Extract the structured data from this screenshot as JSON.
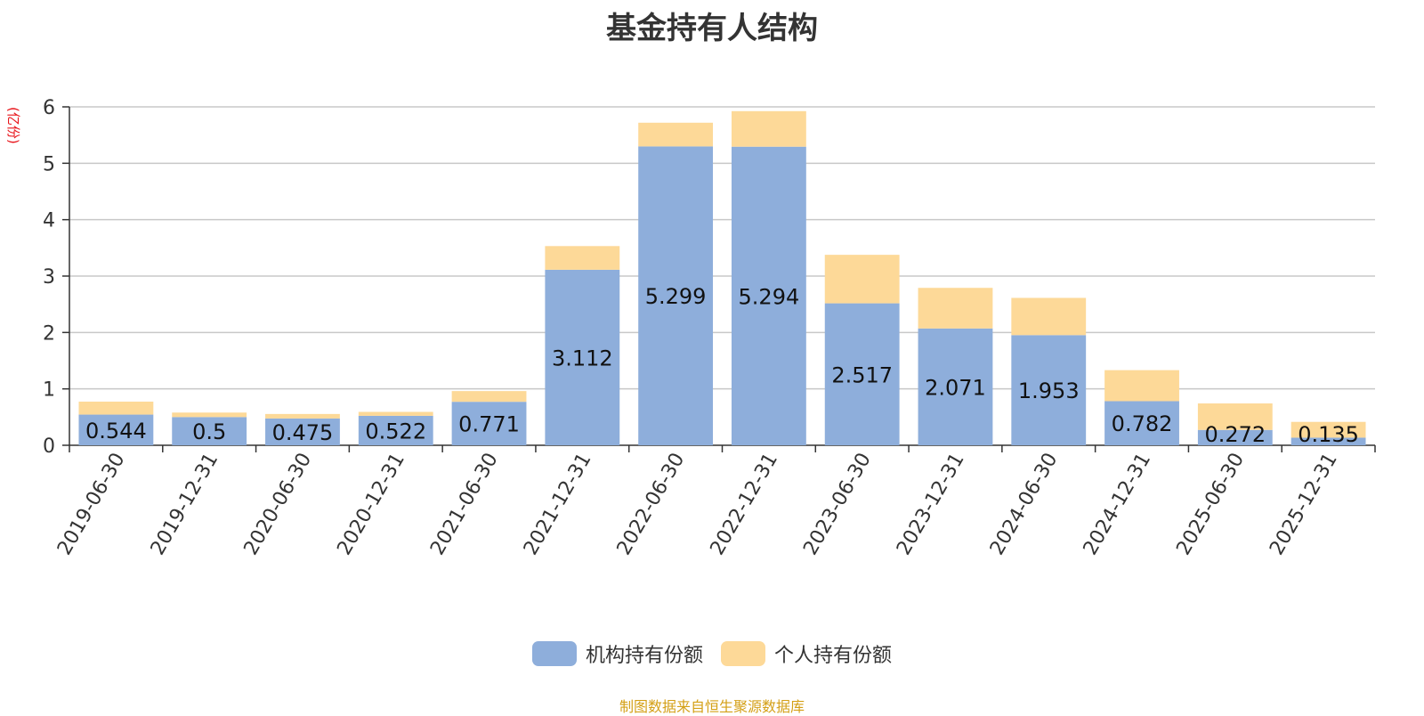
{
  "title": "基金持有人结构",
  "unit_label": "(亿份)",
  "source_text": "制图数据来自恒生聚源数据库",
  "colors": {
    "institutional": "#8eaedb",
    "individual": "#fdd998",
    "grid": "#c8c8c8",
    "axis": "#333333"
  },
  "chart_data": {
    "type": "bar",
    "stacked": true,
    "title": "基金持有人结构",
    "ylabel": "(亿份)",
    "ylim": [
      0,
      6
    ],
    "yticks": [
      0,
      1,
      2,
      3,
      4,
      5,
      6
    ],
    "grid": true,
    "legend_position": "bottom",
    "categories": [
      "2019-06-30",
      "2019-12-31",
      "2020-06-30",
      "2020-12-31",
      "2021-06-30",
      "2021-12-31",
      "2022-06-30",
      "2022-12-31",
      "2023-06-30",
      "2023-12-31",
      "2024-06-30",
      "2024-12-31",
      "2025-06-30",
      "2025-12-31"
    ],
    "series": [
      {
        "name": "机构持有份额",
        "values": [
          0.544,
          0.5,
          0.475,
          0.522,
          0.771,
          3.112,
          5.299,
          5.294,
          2.517,
          2.071,
          1.953,
          0.782,
          0.272,
          0.135
        ],
        "value_labels": [
          "0.544",
          "0.5",
          "0.475",
          "0.522",
          "0.771",
          "3.112",
          "5.299",
          "5.294",
          "2.517",
          "2.071",
          "1.953",
          "0.782",
          "0.272",
          "0.135"
        ]
      },
      {
        "name": "个人持有份额",
        "values": [
          0.23,
          0.08,
          0.08,
          0.07,
          0.19,
          0.42,
          0.42,
          0.63,
          0.86,
          0.72,
          0.66,
          0.55,
          0.47,
          0.28
        ]
      }
    ]
  }
}
